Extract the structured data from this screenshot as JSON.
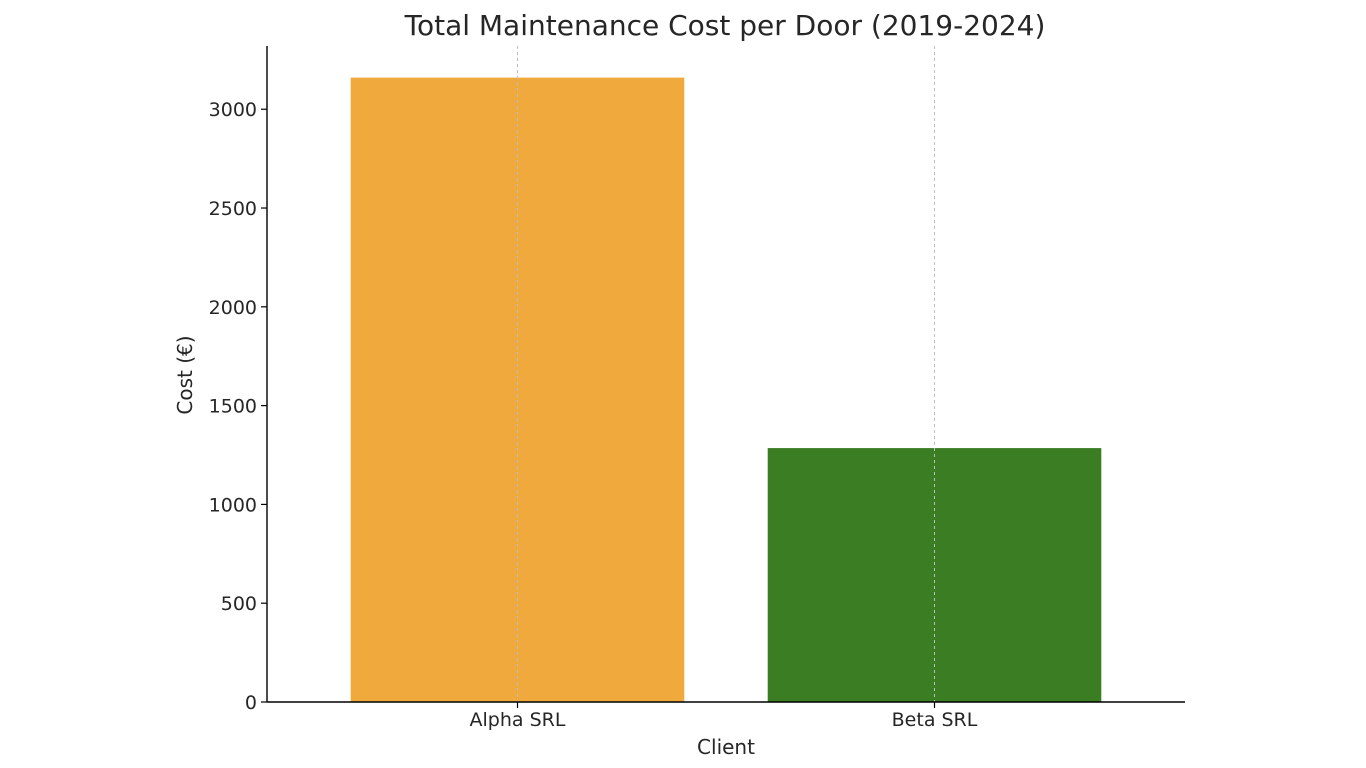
{
  "chart_data": {
    "type": "bar",
    "title": "Total Maintenance Cost per Door (2019-2024)",
    "xlabel": "Client",
    "ylabel": "Cost (€)",
    "categories": [
      "Alpha SRL",
      "Beta SRL"
    ],
    "values": [
      3160,
      1285
    ],
    "colors": [
      "#f0a93c",
      "#3a7d22"
    ],
    "ylim": [
      0,
      3320
    ],
    "yticks": [
      0,
      500,
      1000,
      1500,
      2000,
      2500,
      3000
    ],
    "grid": "vertical-at-categories"
  }
}
